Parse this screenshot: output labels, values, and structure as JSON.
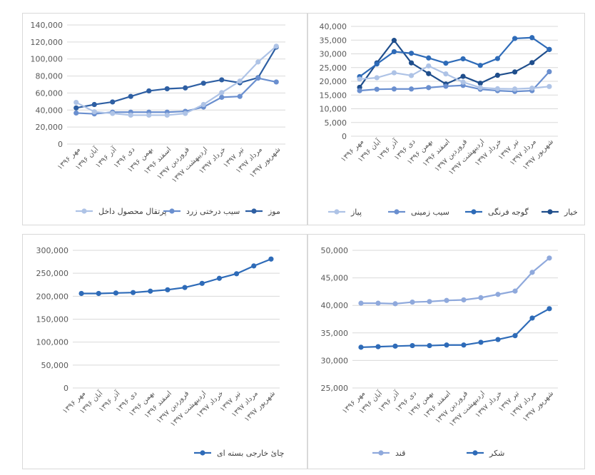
{
  "chart_data": [
    {
      "type": "line",
      "categories": [
        "مهر ۱۳۹۶",
        "آبان ۱۳۹۶",
        "آذر ۱۳۹۶",
        "دی ۱۳۹۶",
        "بهمن ۱۳۹۶",
        "اسفند ۱۳۹۶",
        "فروردین ۱۳۹۷",
        "اردیبهشت ۱۳۹۷",
        "خرداد ۱۳۹۷",
        "تیر ۱۳۹۷",
        "مرداد ۱۳۹۷",
        "شهریور ۱۳۹۷"
      ],
      "ylim": [
        0,
        140000
      ],
      "yticks": [
        "0",
        "20,000",
        "40,000",
        "60,000",
        "80,000",
        "100,000",
        "120,000",
        "140,000"
      ],
      "grid": true,
      "legend_position": "bottom",
      "series": [
        {
          "name": "موز",
          "color": "#2e5fa3",
          "values": [
            42500,
            46500,
            49500,
            56000,
            62500,
            65000,
            66000,
            71500,
            75500,
            72000,
            78000,
            114000
          ]
        },
        {
          "name": "سیب درختی زرد",
          "color": "#6a8fcf",
          "values": [
            36500,
            35500,
            37500,
            37500,
            37500,
            37500,
            38500,
            43500,
            55000,
            56000,
            77500,
            73000
          ]
        },
        {
          "name": "پرتقال محصول داخل",
          "color": "#aec3e6",
          "values": [
            49000,
            38000,
            36000,
            34000,
            34000,
            34000,
            36000,
            46500,
            60500,
            74000,
            96500,
            115000
          ]
        }
      ]
    },
    {
      "type": "line",
      "categories": [
        "مهر ۱۳۹۶",
        "آبان ۱۳۹۶",
        "آذر ۱۳۹۶",
        "دی ۱۳۹۶",
        "بهمن ۱۳۹۶",
        "اسفند ۱۳۹۶",
        "فروردین ۱۳۹۷",
        "اردیبهشت ۱۳۹۷",
        "خرداد ۱۳۹۷",
        "تیر ۱۳۹۷",
        "مرداد ۱۳۹۷",
        "شهریور ۱۳۹۷"
      ],
      "ylim": [
        0,
        40000
      ],
      "yticks": [
        "0",
        "5,000",
        "10,000",
        "15,000",
        "20,000",
        "25,000",
        "30,000",
        "35,000",
        "40,000"
      ],
      "grid": true,
      "legend_position": "bottom",
      "series": [
        {
          "name": "خیار",
          "color": "#1f4e8c",
          "values": [
            17800,
            26700,
            34900,
            26700,
            22800,
            19000,
            21800,
            19300,
            22200,
            23400,
            26800,
            31600
          ]
        },
        {
          "name": "گوجه فرنگی",
          "color": "#2e6bb8",
          "values": [
            21700,
            26300,
            30800,
            30200,
            28500,
            26600,
            28200,
            25800,
            28300,
            35600,
            35900,
            31600
          ]
        },
        {
          "name": "سیب زمینی",
          "color": "#6a8fcf",
          "values": [
            16600,
            17100,
            17200,
            17200,
            17700,
            18200,
            18500,
            17100,
            16600,
            16300,
            16600,
            23500
          ]
        },
        {
          "name": "پیاز",
          "color": "#aec3e6",
          "values": [
            20800,
            21300,
            23100,
            22100,
            25600,
            22700,
            19700,
            17700,
            17300,
            17200,
            17500,
            18100
          ]
        }
      ]
    },
    {
      "type": "line",
      "categories": [
        "مهر ۱۳۹۶",
        "آبان ۱۳۹۶",
        "آذر ۱۳۹۶",
        "دی ۱۳۹۶",
        "بهمن ۱۳۹۶",
        "اسفند ۱۳۹۶",
        "فروردین ۱۳۹۷",
        "اردیبهشت ۱۳۹۷",
        "خرداد ۱۳۹۷",
        "تیر ۱۳۹۷",
        "مرداد ۱۳۹۷",
        "شهریور ۱۳۹۷"
      ],
      "ylim": [
        0,
        300000
      ],
      "yticks": [
        "0",
        "50,000",
        "100,000",
        "150,000",
        "200,000",
        "250,000",
        "300,000"
      ],
      "grid": true,
      "legend_position": "bottom",
      "series": [
        {
          "name": "چائ خارجی بسته ای",
          "color": "#2e6bb8",
          "values": [
            206000,
            206000,
            207000,
            208000,
            211000,
            214000,
            219000,
            228000,
            239000,
            249000,
            266000,
            281000
          ]
        }
      ]
    },
    {
      "type": "line",
      "categories": [
        "مهر ۱۳۹۶",
        "آبان ۱۳۹۶",
        "آذر ۱۳۹۶",
        "دی ۱۳۹۶",
        "بهمن ۱۳۹۶",
        "اسفند ۱۳۹۶",
        "فروردین ۱۳۹۷",
        "اردیبهشت ۱۳۹۷",
        "خرداد ۱۳۹۷",
        "تیر ۱۳۹۷",
        "مرداد ۱۳۹۷",
        "شهریور ۱۳۹۷"
      ],
      "ylim": [
        25000,
        50000
      ],
      "yticks": [
        "25,000",
        "30,000",
        "35,000",
        "40,000",
        "45,000",
        "50,000"
      ],
      "grid": true,
      "legend_position": "bottom",
      "series": [
        {
          "name": "شکر",
          "color": "#2e6bb8",
          "values": [
            32400,
            32500,
            32600,
            32700,
            32700,
            32800,
            32800,
            33300,
            33800,
            34500,
            37700,
            39400
          ]
        },
        {
          "name": "قند",
          "color": "#8fa9dc",
          "values": [
            40400,
            40400,
            40300,
            40600,
            40700,
            40900,
            41000,
            41400,
            42000,
            42600,
            46000,
            48600
          ]
        }
      ]
    }
  ]
}
